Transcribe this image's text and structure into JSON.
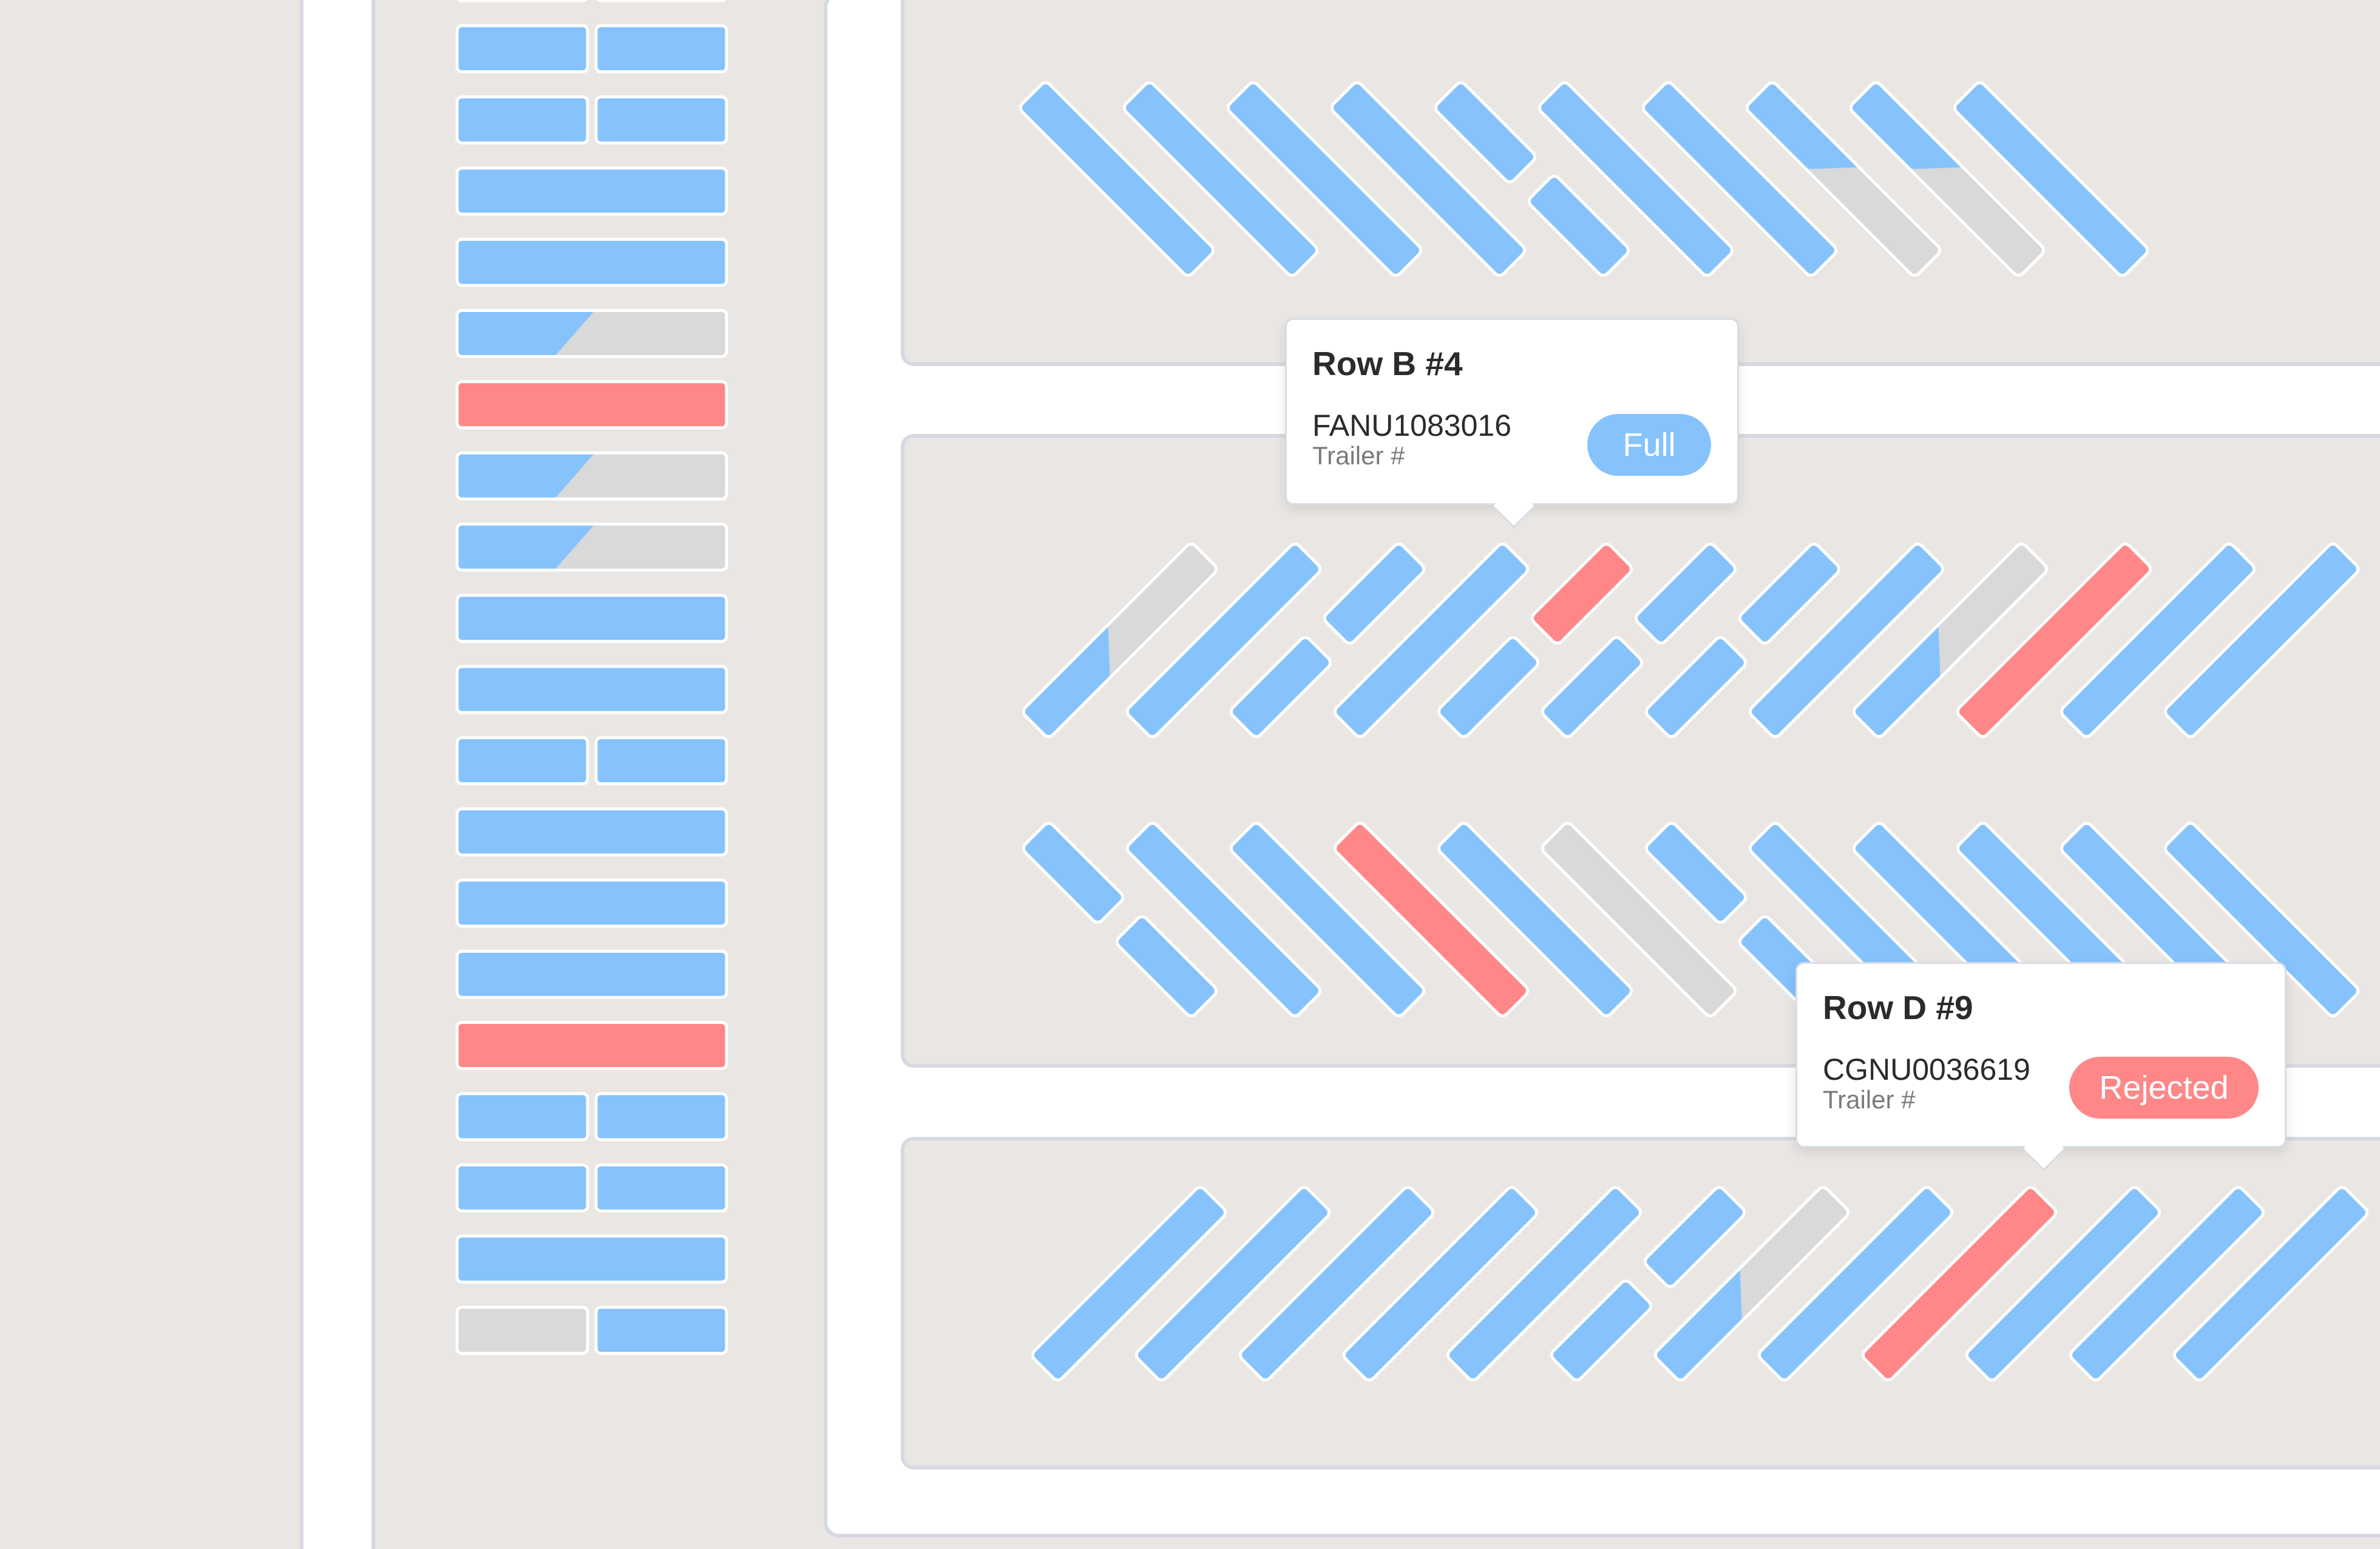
{
  "colors": {
    "background": "#EAE6E3",
    "road": "#FFFFFF",
    "road_edge": "#D6D9E2",
    "lot_fill": "#EAE6E3",
    "lot_border": "#D6D9E2",
    "full": "#86C3FC",
    "empty": "#D9D9D9",
    "rejected": "#FF8787",
    "slot_stroke": "#FFFFFF"
  },
  "legend_semantics": {
    "full": "blue bar",
    "partial": "blue and gray bar",
    "empty": "gray bar",
    "rejected": "red bar"
  },
  "vertical_row": {
    "slots": [
      [
        "full",
        "full"
      ],
      [
        "full",
        "full"
      ],
      [
        "full",
        "full"
      ],
      [
        "full"
      ],
      [
        "full"
      ],
      [
        "partial:0.5"
      ],
      [
        "rejected"
      ],
      [
        "partial:0.5"
      ],
      [
        "partial:0.5"
      ],
      [
        "full"
      ],
      [
        "full"
      ],
      [
        "full",
        "full"
      ],
      [
        "full"
      ],
      [
        "full"
      ],
      [
        "full"
      ],
      [
        "rejected"
      ],
      [
        "full",
        "full"
      ],
      [
        "full",
        "full"
      ],
      [
        "full"
      ],
      [
        "empty",
        "full"
      ]
    ]
  },
  "diagonal_rows": {
    "row_a": [
      "full",
      "full",
      "full",
      "full",
      [
        "full",
        "full"
      ],
      "full",
      "full",
      "partial:0.5",
      "partial:0.5",
      "full"
    ],
    "row_b": [
      "partial:0.5",
      "full",
      [
        "full",
        "full"
      ],
      "full",
      [
        "full",
        "rejected"
      ],
      [
        "full",
        "full"
      ],
      [
        "full",
        "full"
      ],
      "full",
      "partial:0.5",
      "rejected",
      "full",
      "full"
    ],
    "row_c": [
      [
        "full",
        "full"
      ],
      "full",
      "full",
      "rejected",
      "full",
      "empty",
      [
        "full",
        "full"
      ],
      "full",
      "full",
      "full",
      "full",
      "full"
    ],
    "row_d": [
      "full",
      "full",
      "full",
      "full",
      "full",
      [
        "full",
        "full"
      ],
      "partial:0.5",
      "full",
      "rejected",
      "full",
      "full",
      "full"
    ]
  },
  "tooltips": [
    {
      "title": "Row B #4",
      "trailer_id": "FANU1083016",
      "trailer_label": "Trailer #",
      "status": "Full",
      "status_color": "#86C3FC"
    },
    {
      "title": "Row D #9",
      "trailer_id": "CGNU0036619",
      "trailer_label": "Trailer #",
      "status": "Rejected",
      "status_color": "#FF8787"
    }
  ]
}
